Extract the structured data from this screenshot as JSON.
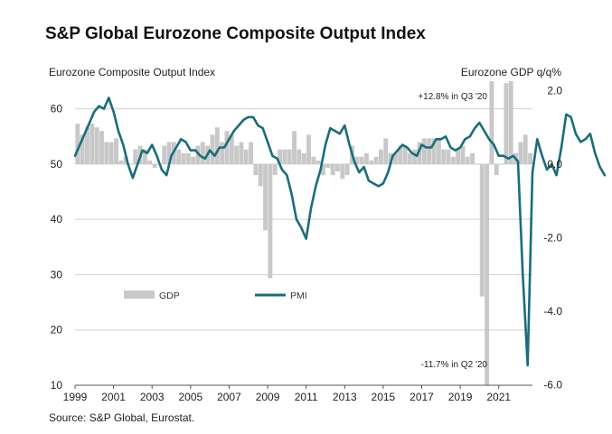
{
  "chart_data": {
    "type": "bar+line",
    "title": "S&P Global Eurozone Composite Output Index",
    "source": "Source: S&P Global, Eurostat.",
    "left_axis": {
      "label": "Eurozone  Composite Output Index",
      "min": 10,
      "max": 65,
      "ticks": [
        "10",
        "20",
        "30",
        "40",
        "50",
        "60"
      ],
      "tick_values": [
        10,
        20,
        30,
        40,
        50,
        60
      ],
      "baseline": 50
    },
    "right_axis": {
      "label": "Eurozone  GDP q/q%",
      "min": -6.0,
      "max": 2.3,
      "ticks": [
        "2.0",
        "0.0",
        "-2.0",
        "-4.0",
        "-6.0"
      ],
      "tick_values": [
        2.0,
        0.0,
        -2.0,
        -4.0,
        -6.0
      ]
    },
    "x_axis": {
      "min": 1999.0,
      "max": 2022.75,
      "ticks": [
        "1999",
        "2001",
        "2003",
        "2005",
        "2007",
        "2009",
        "2011",
        "2013",
        "2015",
        "2017",
        "2019",
        "2021"
      ],
      "tick_values": [
        1999,
        2001,
        2003,
        2005,
        2007,
        2009,
        2011,
        2013,
        2015,
        2017,
        2019,
        2021
      ]
    },
    "legend": {
      "position": "bottom-left",
      "gdp_label": "GDP",
      "pmi_label": "PMI"
    },
    "annotations": {
      "high": "+12.8% in Q3 '20",
      "low": "-11.7% in Q2 '20"
    },
    "colors": {
      "gdp": "#c8c8c8",
      "pmi": "#1a6d7b",
      "grid": "#d0d0d0"
    },
    "gdp_series": {
      "name": "GDP",
      "axis": "right",
      "quarters": [
        "1999Q1",
        "1999Q2",
        "1999Q3",
        "1999Q4",
        "2000Q1",
        "2000Q2",
        "2000Q3",
        "2000Q4",
        "2001Q1",
        "2001Q2",
        "2001Q3",
        "2001Q4",
        "2002Q1",
        "2002Q2",
        "2002Q3",
        "2002Q4",
        "2003Q1",
        "2003Q2",
        "2003Q3",
        "2003Q4",
        "2004Q1",
        "2004Q2",
        "2004Q3",
        "2004Q4",
        "2005Q1",
        "2005Q2",
        "2005Q3",
        "2005Q4",
        "2006Q1",
        "2006Q2",
        "2006Q3",
        "2006Q4",
        "2007Q1",
        "2007Q2",
        "2007Q3",
        "2007Q4",
        "2008Q1",
        "2008Q2",
        "2008Q3",
        "2008Q4",
        "2009Q1",
        "2009Q2",
        "2009Q3",
        "2009Q4",
        "2010Q1",
        "2010Q2",
        "2010Q3",
        "2010Q4",
        "2011Q1",
        "2011Q2",
        "2011Q3",
        "2011Q4",
        "2012Q1",
        "2012Q2",
        "2012Q3",
        "2012Q4",
        "2013Q1",
        "2013Q2",
        "2013Q3",
        "2013Q4",
        "2014Q1",
        "2014Q2",
        "2014Q3",
        "2014Q4",
        "2015Q1",
        "2015Q2",
        "2015Q3",
        "2015Q4",
        "2016Q1",
        "2016Q2",
        "2016Q3",
        "2016Q4",
        "2017Q1",
        "2017Q2",
        "2017Q3",
        "2017Q4",
        "2018Q1",
        "2018Q2",
        "2018Q3",
        "2018Q4",
        "2019Q1",
        "2019Q2",
        "2019Q3",
        "2019Q4",
        "2020Q1",
        "2020Q2",
        "2020Q3",
        "2020Q4",
        "2021Q1",
        "2021Q2",
        "2021Q3",
        "2021Q4",
        "2022Q1",
        "2022Q2",
        "2022Q3"
      ],
      "values": [
        1.1,
        0.8,
        1.0,
        1.1,
        1.0,
        0.9,
        0.6,
        0.6,
        0.7,
        0.1,
        0.2,
        0.0,
        0.4,
        0.5,
        0.4,
        0.1,
        -0.1,
        0.0,
        0.5,
        0.6,
        0.6,
        0.4,
        0.3,
        0.3,
        0.2,
        0.5,
        0.6,
        0.5,
        0.8,
        1.0,
        0.6,
        0.9,
        0.8,
        0.5,
        0.6,
        0.4,
        0.6,
        -0.3,
        -0.6,
        -1.8,
        -3.1,
        -0.3,
        0.4,
        0.4,
        0.4,
        0.9,
        0.4,
        0.3,
        0.8,
        0.2,
        0.1,
        -0.3,
        -0.1,
        -0.3,
        -0.2,
        -0.4,
        -0.3,
        0.5,
        0.2,
        0.2,
        0.3,
        0.1,
        0.2,
        0.4,
        0.7,
        0.3,
        0.3,
        0.5,
        0.5,
        0.3,
        0.4,
        0.6,
        0.7,
        0.7,
        0.7,
        0.7,
        0.4,
        0.4,
        0.2,
        0.4,
        0.5,
        0.2,
        0.3,
        0.0,
        -3.6,
        -11.7,
        12.8,
        -0.3,
        0.0,
        2.2,
        2.3,
        0.3,
        0.6,
        0.8,
        0.3
      ]
    },
    "pmi_series": {
      "name": "PMI",
      "axis": "left",
      "start": 1999.0,
      "step_years": 0.25,
      "values": [
        51.5,
        53.5,
        55.5,
        57.5,
        59.5,
        60.5,
        60.0,
        62.0,
        59.5,
        56.0,
        53.5,
        50.0,
        47.5,
        50.0,
        52.5,
        52.0,
        53.5,
        51.5,
        49.0,
        48.0,
        51.5,
        53.0,
        54.5,
        54.0,
        52.5,
        52.5,
        51.5,
        51.0,
        52.5,
        51.5,
        53.0,
        53.0,
        54.5,
        56.0,
        57.0,
        58.0,
        58.5,
        58.5,
        57.0,
        56.5,
        54.0,
        51.5,
        51.0,
        49.0,
        48.0,
        44.5,
        40.0,
        38.5,
        36.5,
        42.0,
        46.0,
        49.0,
        53.5,
        56.5,
        56.0,
        55.5,
        57.0,
        53.5,
        50.5,
        48.5,
        49.5,
        47.0,
        46.5,
        46.0,
        46.5,
        48.5,
        51.5,
        52.5,
        53.5,
        53.0,
        52.0,
        51.5,
        53.5,
        53.0,
        53.0,
        54.5,
        54.5,
        55.0,
        53.0,
        52.5,
        53.0,
        54.5,
        55.0,
        56.5,
        57.5,
        56.0,
        54.5,
        53.5,
        51.5,
        51.5,
        51.0,
        51.5,
        50.5,
        30.0,
        13.6,
        48.5,
        54.5,
        51.5,
        49.0,
        50.0,
        48.0,
        53.0,
        59.0,
        58.5,
        55.5,
        54.0,
        54.5,
        55.5,
        52.0,
        49.5,
        48.0
      ]
    }
  }
}
